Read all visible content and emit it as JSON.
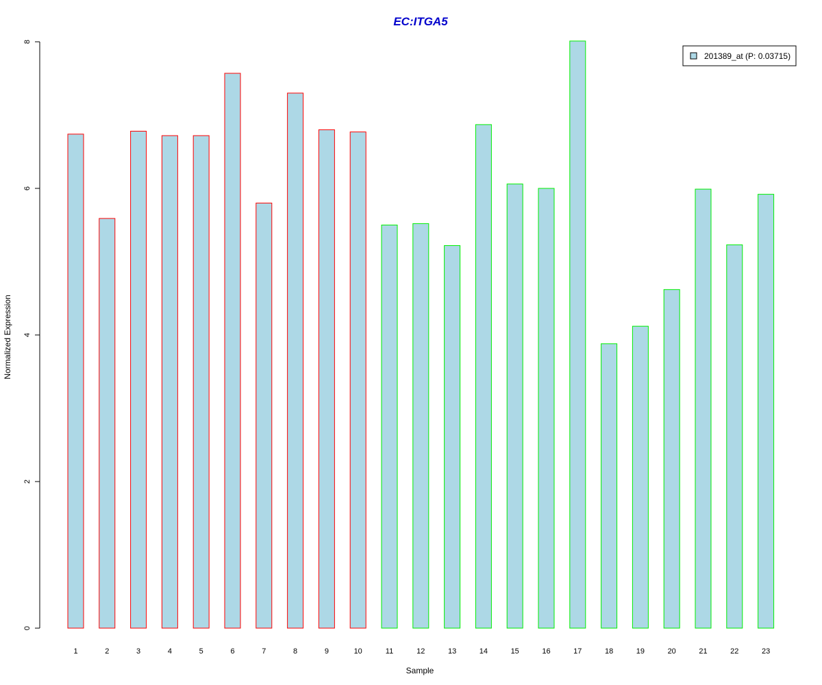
{
  "chart_data": {
    "type": "bar",
    "title": "EC:ITGA5",
    "title_color": "#0000CC",
    "xlabel": "Sample",
    "ylabel": "Normalized Expression",
    "categories": [
      "1",
      "2",
      "3",
      "4",
      "5",
      "6",
      "7",
      "8",
      "9",
      "10",
      "11",
      "12",
      "13",
      "14",
      "15",
      "16",
      "17",
      "18",
      "19",
      "20",
      "21",
      "22",
      "23"
    ],
    "values": [
      6.74,
      5.59,
      6.78,
      6.72,
      6.72,
      7.57,
      5.8,
      7.3,
      6.8,
      6.77,
      5.5,
      5.52,
      5.22,
      6.87,
      6.06,
      6.0,
      8.01,
      3.88,
      4.12,
      4.62,
      5.99,
      5.23,
      5.92
    ],
    "groups": [
      "1",
      "1",
      "1",
      "1",
      "1",
      "1",
      "1",
      "1",
      "1",
      "1",
      "2",
      "2",
      "2",
      "2",
      "2",
      "2",
      "2",
      "2",
      "2",
      "2",
      "2",
      "2",
      "2"
    ],
    "group_colors": {
      "1": "#FF0000",
      "2": "#00EE00"
    },
    "fill_color": "#ADD8E6",
    "ylim": [
      0,
      8
    ],
    "yticks": [
      0,
      2,
      4,
      6,
      8
    ],
    "ytick_labels": [
      "0",
      "2",
      "4",
      "6",
      "8"
    ],
    "grid": false,
    "legend": {
      "placement": "top-right",
      "entries": [
        {
          "label": "201389_at (P: 0.03715)",
          "color": "#ADD8E6"
        }
      ]
    }
  }
}
